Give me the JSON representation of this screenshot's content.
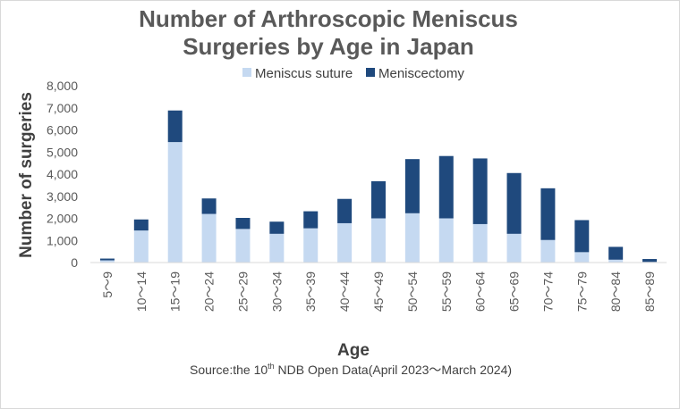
{
  "chart_data": {
    "type": "bar",
    "stacked": true,
    "title": "Number of Arthroscopic Meniscus",
    "title_line2": "Surgeries by Age in Japan",
    "xlabel": "Age",
    "ylabel": "Number of surgeries",
    "ylim": [
      0,
      8000
    ],
    "yticks": [
      0,
      1000,
      2000,
      3000,
      4000,
      5000,
      6000,
      7000,
      8000
    ],
    "ytick_labels": [
      "0",
      "1,000",
      "2,000",
      "3,000",
      "4,000",
      "5,000",
      "6,000",
      "7,000",
      "8,000"
    ],
    "categories": [
      "5～9",
      "10～14",
      "15～19",
      "20～24",
      "25～29",
      "30～34",
      "35～39",
      "40～44",
      "45～49",
      "50～54",
      "55～59",
      "60～64",
      "65～69",
      "70～74",
      "75～79",
      "80～84",
      "85～89"
    ],
    "series": [
      {
        "name": "Meniscus suture",
        "color": "#c5d9f1",
        "values": [
          100,
          1450,
          5450,
          2200,
          1520,
          1300,
          1550,
          1780,
          2000,
          2230,
          2000,
          1740,
          1300,
          1020,
          470,
          130,
          30
        ]
      },
      {
        "name": "Meniscectomy",
        "color": "#1f497d",
        "values": [
          80,
          500,
          1430,
          700,
          500,
          550,
          770,
          1100,
          1680,
          2450,
          2820,
          2970,
          2750,
          2340,
          1450,
          580,
          130
        ]
      }
    ],
    "grid": false,
    "legend_position": "top",
    "source_prefix": "Source:the 10",
    "source_sup": "th",
    "source_suffix": " NDB Open Data(April 2023～March 2024)"
  }
}
